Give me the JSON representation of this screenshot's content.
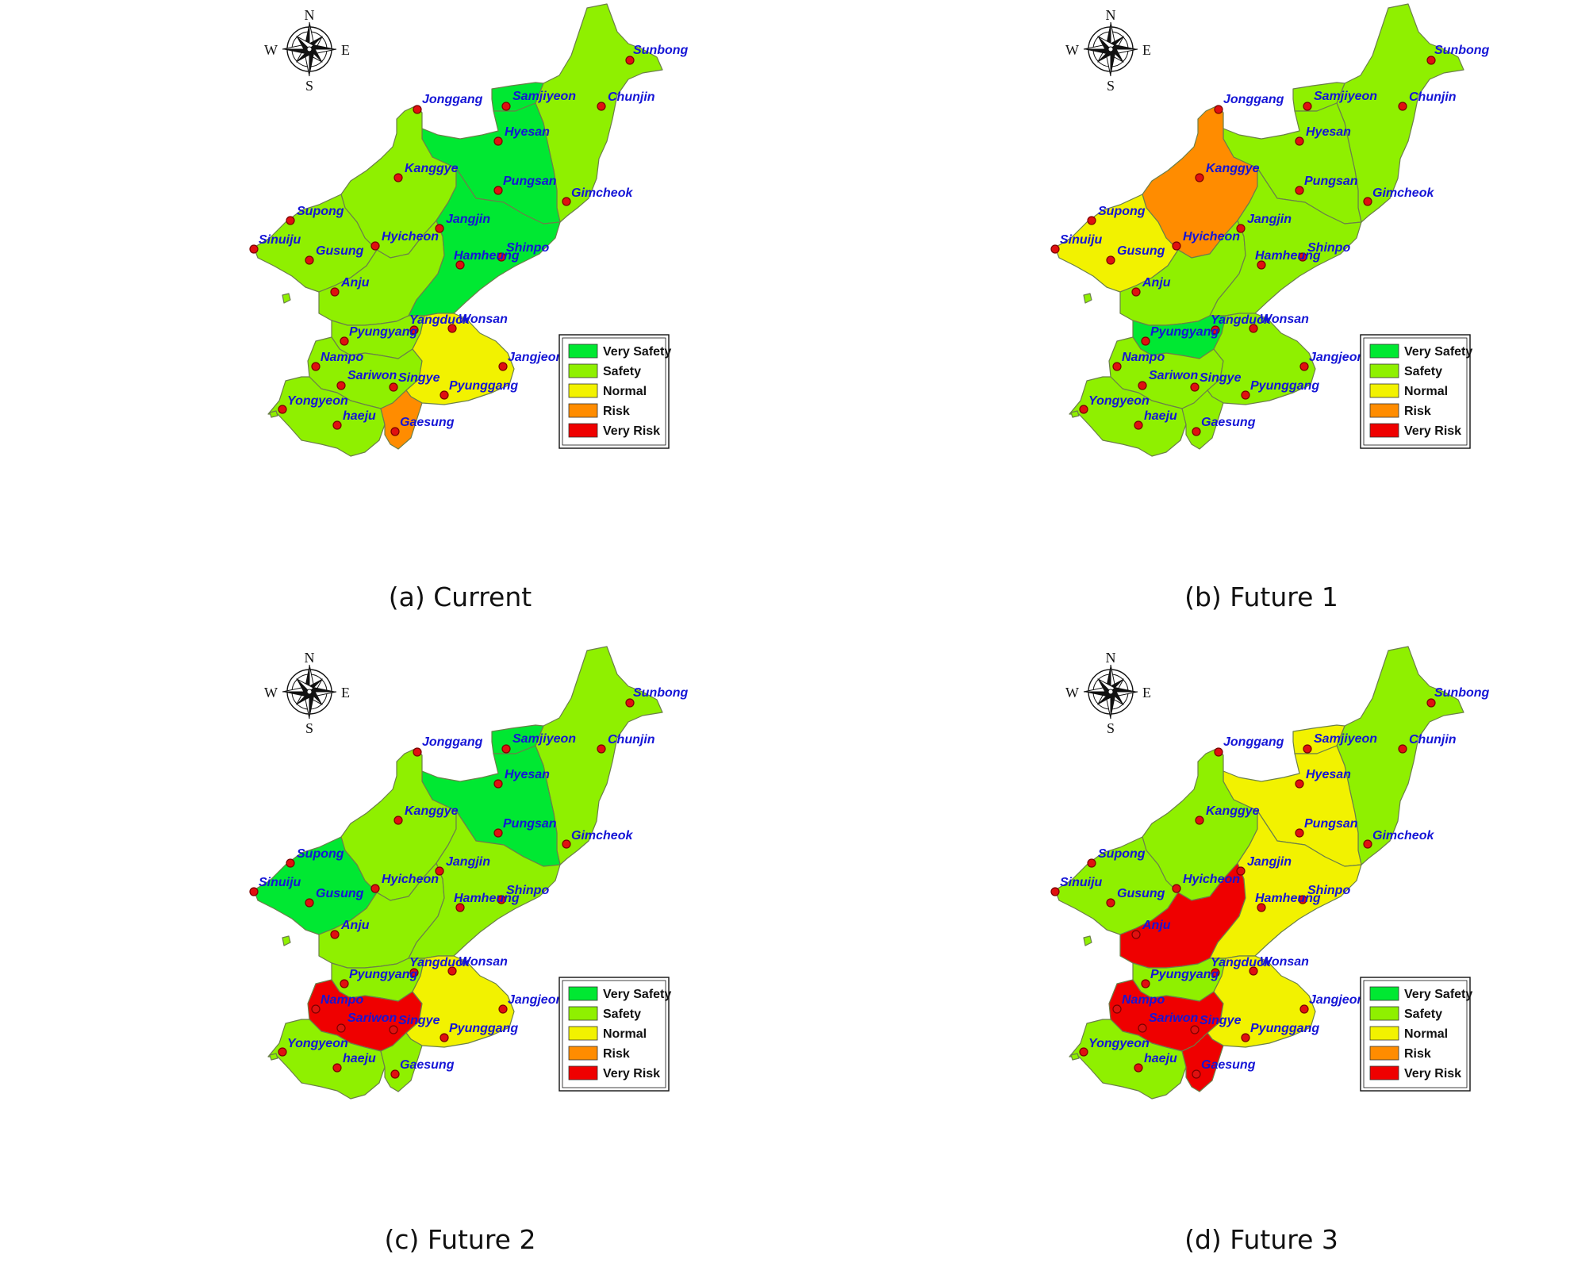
{
  "colors": {
    "very_safety": "#00e832",
    "safety": "#8ff000",
    "normal": "#f2f200",
    "risk": "#ff8c00",
    "very_risk": "#ef0000",
    "city_label": "#1515d6",
    "city_dot": "#e01010"
  },
  "compass": {
    "n": "N",
    "e": "E",
    "s": "S",
    "w": "W",
    "icon": "compass-rose-icon"
  },
  "legend": {
    "items": [
      {
        "key": "very_safety",
        "label": "Very Safety"
      },
      {
        "key": "safety",
        "label": "Safety"
      },
      {
        "key": "normal",
        "label": "Normal"
      },
      {
        "key": "risk",
        "label": "Risk"
      },
      {
        "key": "very_risk",
        "label": "Very Risk"
      }
    ]
  },
  "cities": [
    "Sunbong",
    "Samjiyeon",
    "Chunjin",
    "Jonggang",
    "Hyesan",
    "Kanggye",
    "Pungsan",
    "Gimcheok",
    "Supong",
    "Jangjin",
    "Sinuiju",
    "Hyicheon",
    "Shinpo",
    "Gusung",
    "Hamheung",
    "Anju",
    "Yangduck",
    "Wonsan",
    "Pyungyang",
    "Jangjeon",
    "Nampo",
    "Sariwon",
    "Singye",
    "Pyunggang",
    "Yongyeon",
    "haeju",
    "Gaesung"
  ],
  "panels": [
    {
      "caption": "(a) Current",
      "risk_by_region": {
        "northeast": "safety",
        "samjiyeon": "very_safety",
        "hyesan_pungsan": "very_safety",
        "jonggang_kanggye": "safety",
        "sinuiju_gusung": "safety",
        "hyicheon_anju": "safety",
        "jangjin_hamheung": "very_safety",
        "pyungyang": "safety",
        "nampo_sariwon": "safety",
        "wonsan_pyunggang": "normal",
        "yongyeon_haeju": "safety",
        "gaesung": "risk"
      }
    },
    {
      "caption": "(b) Future 1",
      "risk_by_region": {
        "northeast": "safety",
        "samjiyeon": "safety",
        "hyesan_pungsan": "safety",
        "jonggang_kanggye": "risk",
        "sinuiju_gusung": "normal",
        "hyicheon_anju": "safety",
        "jangjin_hamheung": "safety",
        "pyungyang": "very_safety",
        "nampo_sariwon": "safety",
        "wonsan_pyunggang": "safety",
        "yongyeon_haeju": "safety",
        "gaesung": "safety"
      }
    },
    {
      "caption": "(c) Future 2",
      "risk_by_region": {
        "northeast": "safety",
        "samjiyeon": "very_safety",
        "hyesan_pungsan": "very_safety",
        "jonggang_kanggye": "safety",
        "sinuiju_gusung": "very_safety",
        "hyicheon_anju": "safety",
        "jangjin_hamheung": "safety",
        "pyungyang": "safety",
        "nampo_sariwon": "very_risk",
        "wonsan_pyunggang": "normal",
        "yongyeon_haeju": "safety",
        "gaesung": "safety"
      }
    },
    {
      "caption": "(d) Future 3",
      "risk_by_region": {
        "northeast": "safety",
        "samjiyeon": "normal",
        "hyesan_pungsan": "normal",
        "jonggang_kanggye": "safety",
        "sinuiju_gusung": "safety",
        "hyicheon_anju": "very_risk",
        "jangjin_hamheung": "normal",
        "pyungyang": "safety",
        "nampo_sariwon": "very_risk",
        "wonsan_pyunggang": "normal",
        "yongyeon_haeju": "safety",
        "gaesung": "very_risk"
      }
    }
  ]
}
